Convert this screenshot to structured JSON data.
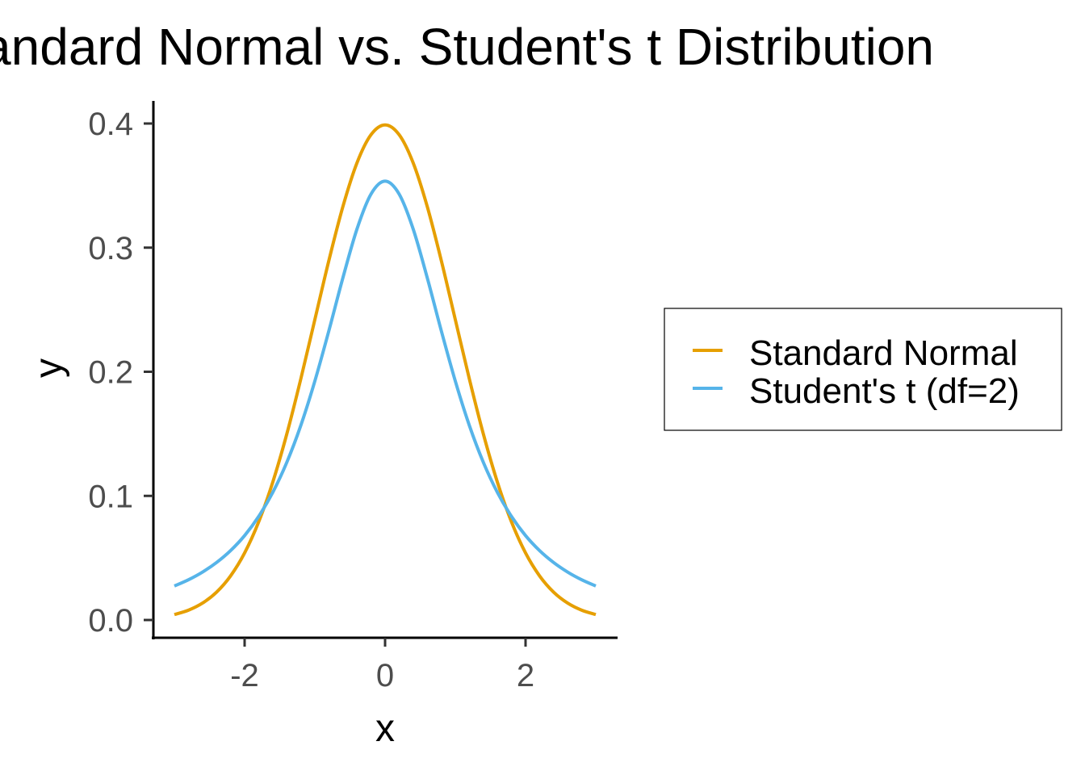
{
  "chart_data": {
    "type": "line",
    "title": "Standard Normal vs. Student's t Distribution",
    "xlabel": "x",
    "ylabel": "y",
    "xlim": [
      -3,
      3
    ],
    "ylim": [
      0,
      0.4
    ],
    "x_ticks": [
      -2,
      0,
      2
    ],
    "x_tick_labels": [
      "-2",
      "0",
      "2"
    ],
    "y_ticks": [
      0,
      0.1,
      0.2,
      0.3,
      0.4
    ],
    "y_tick_labels": [
      "0.0",
      "0.1",
      "0.2",
      "0.3",
      "0.4"
    ],
    "grid": false,
    "legend_position": "right",
    "x": [
      -3,
      -2.8,
      -2.6,
      -2.4,
      -2.2,
      -2,
      -1.8,
      -1.6,
      -1.4,
      -1.2,
      -1,
      -0.8,
      -0.6,
      -0.4,
      -0.2,
      0,
      0.2,
      0.4,
      0.6,
      0.8,
      1,
      1.2,
      1.4,
      1.6,
      1.8,
      2,
      2.2,
      2.4,
      2.6,
      2.8,
      3
    ],
    "series": [
      {
        "name": "Standard Normal",
        "color": "#E69F00",
        "values": [
          0.0044,
          0.0079,
          0.0136,
          0.0224,
          0.0355,
          0.054,
          0.079,
          0.1109,
          0.1497,
          0.1942,
          0.242,
          0.2897,
          0.3332,
          0.3683,
          0.391,
          0.3989,
          0.391,
          0.3683,
          0.3332,
          0.2897,
          0.242,
          0.1942,
          0.1497,
          0.1109,
          0.079,
          0.054,
          0.0355,
          0.0224,
          0.0136,
          0.0079,
          0.0044
        ]
      },
      {
        "name": "Student's t (df=2)",
        "color": "#56B4E9",
        "values": [
          0.0274,
          0.0324,
          0.0386,
          0.0463,
          0.0559,
          0.068,
          0.0834,
          0.1027,
          0.1269,
          0.1567,
          0.1925,
          0.2331,
          0.2758,
          0.315,
          0.3432,
          0.3536,
          0.3432,
          0.315,
          0.2758,
          0.2331,
          0.1925,
          0.1567,
          0.1269,
          0.1027,
          0.0834,
          0.068,
          0.0559,
          0.0463,
          0.0386,
          0.0324,
          0.0274
        ]
      }
    ]
  }
}
